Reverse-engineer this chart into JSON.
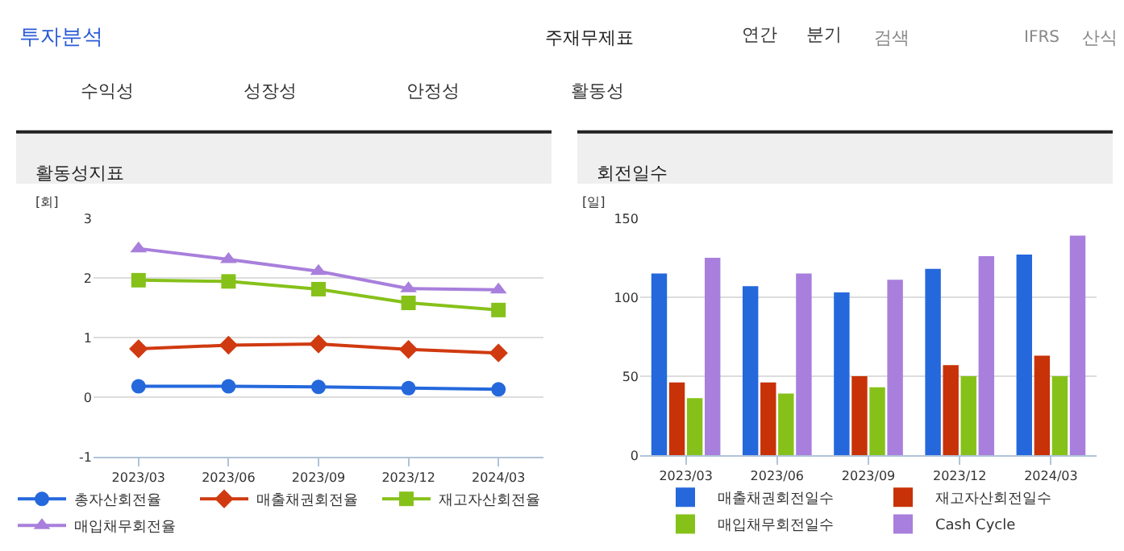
{
  "chart_data": [
    {
      "type": "other",
      "annotations": [
        "투자분석",
        "주재무제표",
        "연간",
        "분기",
        "검색",
        "IFRS",
        "산식",
        "수익성",
        "성장성",
        "안정성",
        "활동성"
      ]
    },
    {
      "type": "line",
      "title": "활동성지표",
      "ylabel": "[회]",
      "categories": [
        "2023/03",
        "2023/06",
        "2023/09",
        "2023/12",
        "2024/03"
      ],
      "ylim": [
        -1,
        3
      ],
      "yticks": [
        -1,
        0,
        1,
        2,
        3
      ],
      "grid": "y",
      "legend": "bottom",
      "series": [
        {
          "name": "총자산회전율",
          "color": "#2468dc",
          "marker": "circle",
          "values": [
            0.18,
            0.18,
            0.17,
            0.15,
            0.13
          ]
        },
        {
          "name": "매출채권회전율",
          "color": "#d03a10",
          "marker": "diamond",
          "values": [
            0.81,
            0.87,
            0.89,
            0.8,
            0.74
          ]
        },
        {
          "name": "재고자산회전율",
          "color": "#86c11a",
          "marker": "square",
          "values": [
            1.96,
            1.94,
            1.81,
            1.58,
            1.46
          ]
        },
        {
          "name": "매입채무회전율",
          "color": "#a87fdc",
          "marker": "triangle",
          "values": [
            2.49,
            2.31,
            2.11,
            1.82,
            1.8
          ]
        }
      ]
    },
    {
      "type": "bar",
      "title": "회전일수",
      "ylabel": "[일]",
      "categories": [
        "2023/03",
        "2023/06",
        "2023/09",
        "2023/12",
        "2024/03"
      ],
      "ylim": [
        0,
        150
      ],
      "yticks": [
        0,
        50,
        100,
        150
      ],
      "grid": "y",
      "legend": "bottom",
      "series": [
        {
          "name": "매출채권회전일수",
          "color": "#2468dc",
          "values": [
            115,
            107,
            103,
            118,
            127
          ]
        },
        {
          "name": "재고자산회전일수",
          "color": "#c83208",
          "values": [
            46,
            46,
            50,
            57,
            63
          ]
        },
        {
          "name": "매입채무회전일수",
          "color": "#86c11a",
          "values": [
            36,
            39,
            43,
            50,
            50
          ]
        },
        {
          "name": "Cash Cycle",
          "color": "#a87fdc",
          "values": [
            125,
            115,
            111,
            126,
            139
          ]
        }
      ]
    }
  ]
}
